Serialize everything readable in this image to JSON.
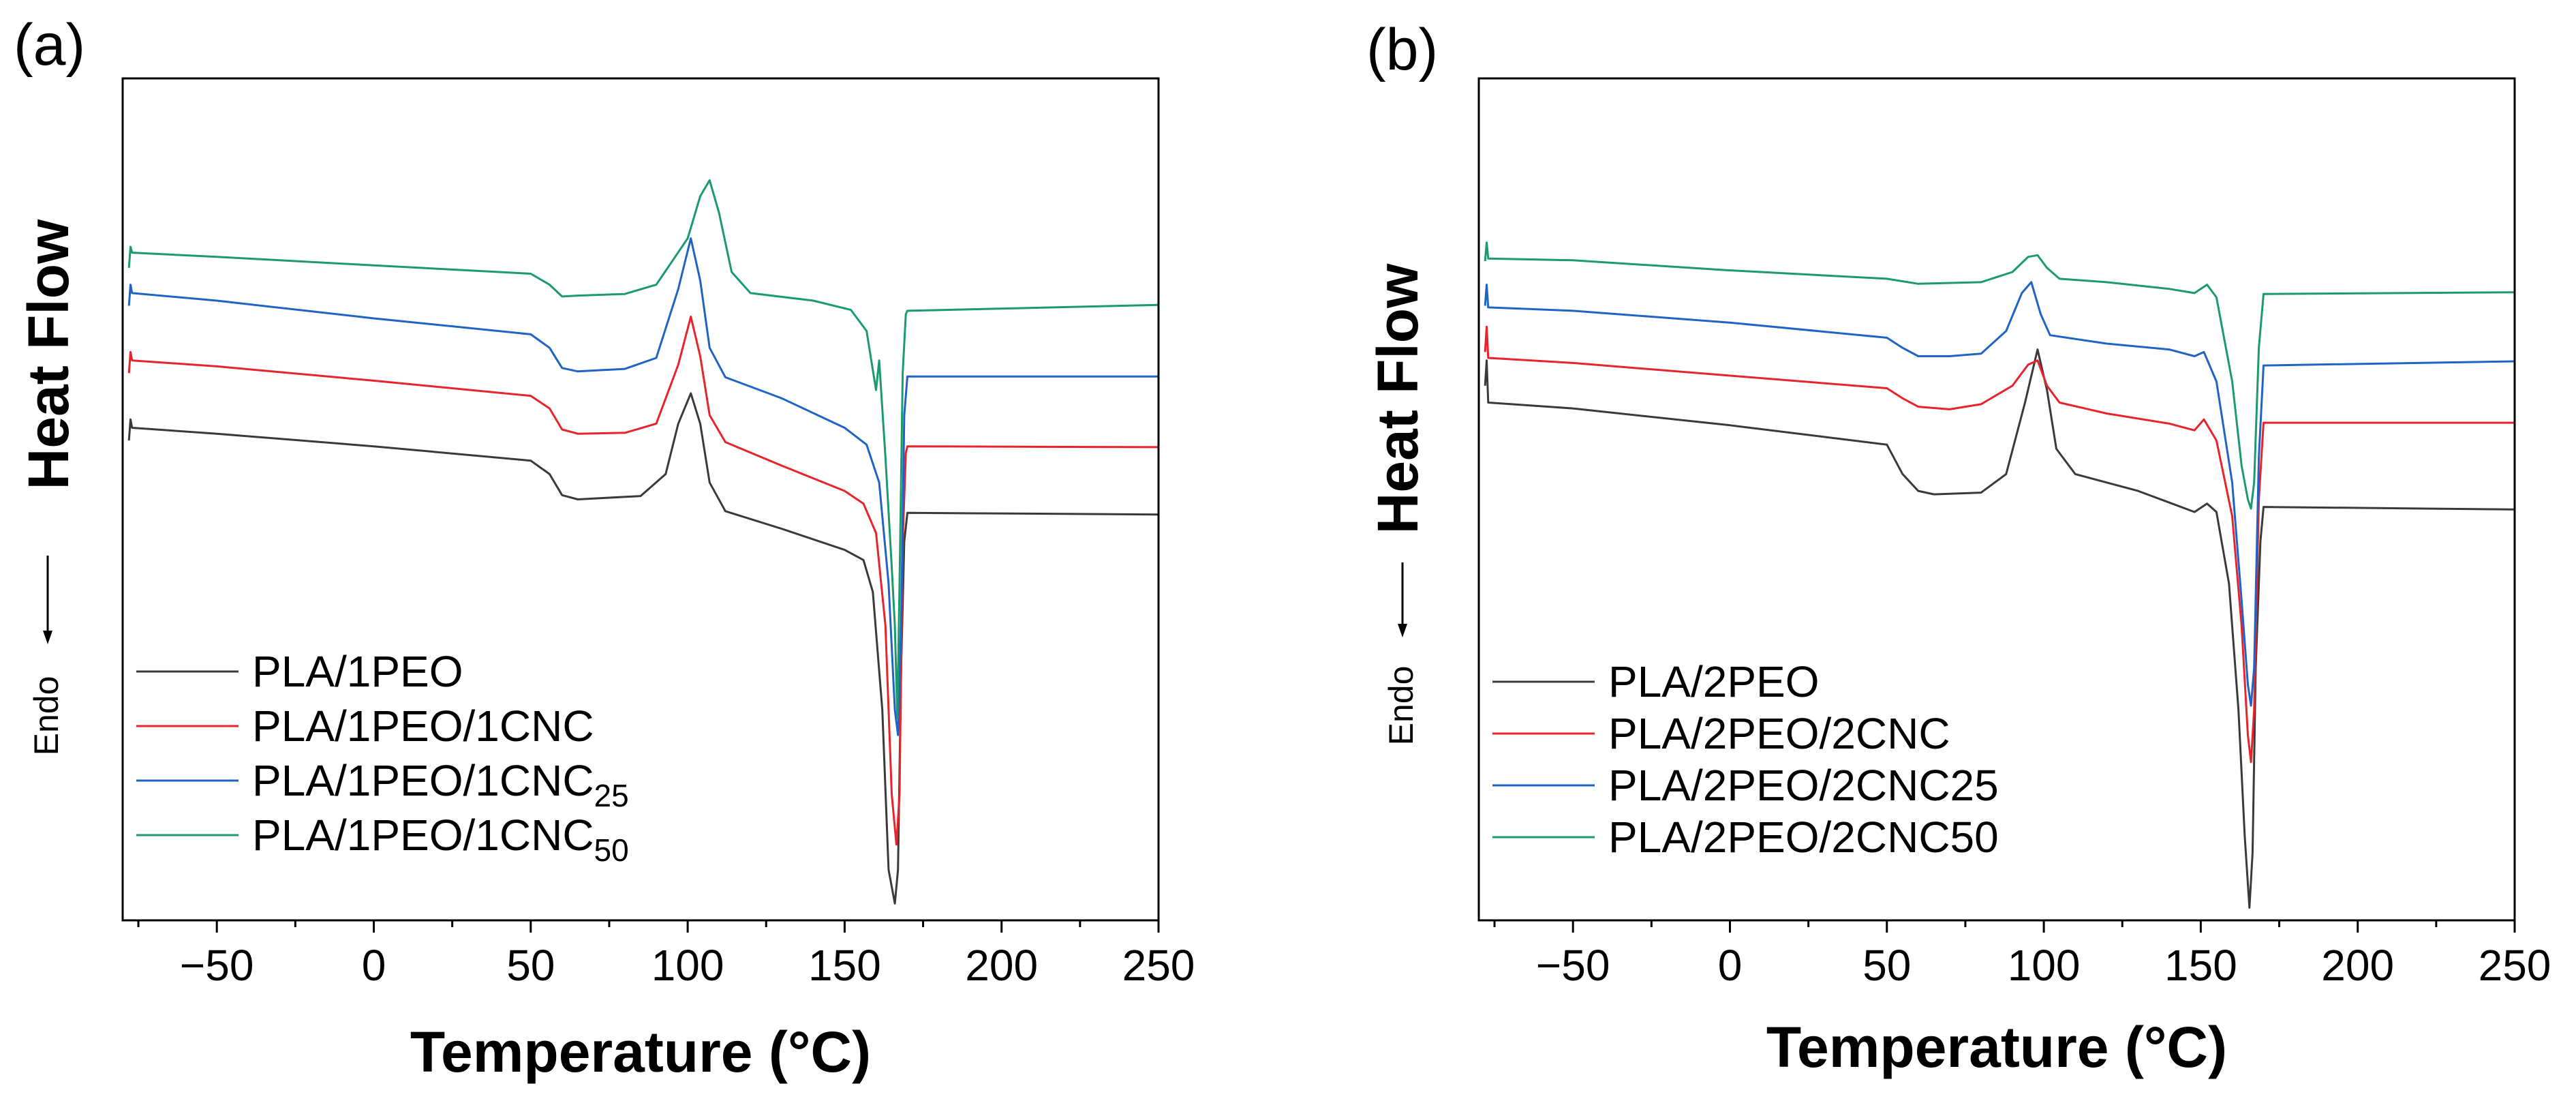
{
  "chart_data": [
    {
      "type": "line",
      "panel": "(a)",
      "xlabel": "Temperature (°C)",
      "ylabel": "Heat Flow",
      "ylabel_note": "Endo",
      "xlim": [
        -80,
        250
      ],
      "xticks": [
        -50,
        0,
        50,
        100,
        150,
        200,
        250
      ],
      "xtick_labels": [
        "−50",
        "0",
        "50",
        "100",
        "150",
        "200",
        "250"
      ],
      "ylim": [
        0,
        100
      ],
      "series": [
        {
          "name": "PLA/1PEO",
          "base": "PLA/1PEO",
          "sub": "",
          "color": "#3a3a3a",
          "points": [
            [
              -78,
              57.0
            ],
            [
              -77.5,
              59.5
            ],
            [
              -77,
              58.5
            ],
            [
              -50,
              57.8
            ],
            [
              0,
              56.3
            ],
            [
              50,
              54.6
            ],
            [
              56,
              53.0
            ],
            [
              60,
              50.5
            ],
            [
              65,
              50.0
            ],
            [
              85,
              50.4
            ],
            [
              93,
              53.0
            ],
            [
              97,
              59.0
            ],
            [
              101,
              62.6
            ],
            [
              104,
              59.0
            ],
            [
              107,
              52.0
            ],
            [
              112,
              48.6
            ],
            [
              130,
              46.5
            ],
            [
              150,
              44.0
            ],
            [
              156,
              42.8
            ],
            [
              159,
              39.0
            ],
            [
              162,
              25.0
            ],
            [
              164,
              6.0
            ],
            [
              166,
              2.0
            ],
            [
              167,
              6.0
            ],
            [
              168,
              30.0
            ],
            [
              169,
              45.0
            ],
            [
              170,
              48.4
            ],
            [
              250,
              48.2
            ]
          ]
        },
        {
          "name": "PLA/1PEO/1CNC",
          "base": "PLA/1PEO/1CNC",
          "sub": "",
          "color": "#e8232b",
          "points": [
            [
              -78,
              65.0
            ],
            [
              -77.5,
              67.5
            ],
            [
              -77,
              66.5
            ],
            [
              -50,
              65.8
            ],
            [
              0,
              64.1
            ],
            [
              50,
              62.3
            ],
            [
              56,
              60.8
            ],
            [
              60,
              58.3
            ],
            [
              65,
              57.8
            ],
            [
              80,
              57.9
            ],
            [
              90,
              59.0
            ],
            [
              97,
              66.0
            ],
            [
              101,
              71.7
            ],
            [
              104,
              67.0
            ],
            [
              107,
              60.0
            ],
            [
              112,
              56.8
            ],
            [
              130,
              54.0
            ],
            [
              150,
              51.0
            ],
            [
              156,
              49.5
            ],
            [
              160,
              46.0
            ],
            [
              163,
              35.0
            ],
            [
              165,
              15.0
            ],
            [
              166.5,
              9.0
            ],
            [
              167.5,
              15.0
            ],
            [
              168.5,
              45.0
            ],
            [
              169.5,
              55.5
            ],
            [
              170,
              56.3
            ],
            [
              250,
              56.2
            ]
          ]
        },
        {
          "name": "PLA/1PEO/1CNC25",
          "base": "PLA/1PEO/1CNC",
          "sub": "25",
          "color": "#1f63c6",
          "points": [
            [
              -78,
              73.0
            ],
            [
              -77.5,
              75.5
            ],
            [
              -77,
              74.5
            ],
            [
              -50,
              73.6
            ],
            [
              0,
              71.5
            ],
            [
              50,
              69.6
            ],
            [
              56,
              68.0
            ],
            [
              60,
              65.6
            ],
            [
              65,
              65.2
            ],
            [
              80,
              65.5
            ],
            [
              90,
              66.8
            ],
            [
              97,
              75.0
            ],
            [
              101,
              81.0
            ],
            [
              104,
              76.0
            ],
            [
              107,
              68.0
            ],
            [
              112,
              64.5
            ],
            [
              130,
              62.0
            ],
            [
              150,
              58.5
            ],
            [
              157,
              56.5
            ],
            [
              161,
              52.0
            ],
            [
              164,
              40.0
            ],
            [
              166,
              25.0
            ],
            [
              167,
              22.0
            ],
            [
              168,
              35.0
            ],
            [
              169,
              60.0
            ],
            [
              170,
              64.6
            ],
            [
              250,
              64.6
            ]
          ]
        },
        {
          "name": "PLA/1PEO/1CNC50",
          "base": "PLA/1PEO/1CNC",
          "sub": "50",
          "color": "#1b9b6c",
          "points": [
            [
              -78,
              77.5
            ],
            [
              -77.5,
              80.0
            ],
            [
              -77,
              79.3
            ],
            [
              -50,
              78.8
            ],
            [
              0,
              77.8
            ],
            [
              50,
              76.8
            ],
            [
              56,
              75.5
            ],
            [
              60,
              74.1
            ],
            [
              65,
              74.2
            ],
            [
              80,
              74.4
            ],
            [
              90,
              75.5
            ],
            [
              100,
              81.0
            ],
            [
              104,
              86.0
            ],
            [
              107,
              87.9
            ],
            [
              110,
              84.0
            ],
            [
              114,
              77.0
            ],
            [
              120,
              74.5
            ],
            [
              140,
              73.6
            ],
            [
              152,
              72.5
            ],
            [
              157,
              70.0
            ],
            [
              160,
              63.0
            ],
            [
              161,
              66.5
            ],
            [
              163,
              55.0
            ],
            [
              165,
              42.0
            ],
            [
              166,
              35.0
            ],
            [
              166.8,
              24.0
            ],
            [
              167.5,
              40.0
            ],
            [
              168.5,
              65.0
            ],
            [
              169.5,
              72.0
            ],
            [
              170,
              72.4
            ],
            [
              250,
              73.1
            ]
          ]
        }
      ],
      "legend": "lower-left"
    },
    {
      "type": "line",
      "panel": "(b)",
      "xlabel": "Temperature (°C)",
      "ylabel": "Heat Flow",
      "ylabel_note": "Endo",
      "xlim": [
        -80,
        250
      ],
      "xticks": [
        -50,
        0,
        50,
        100,
        150,
        200,
        250
      ],
      "xtick_labels": [
        "−50",
        "0",
        "50",
        "100",
        "150",
        "200",
        "250"
      ],
      "ylim": [
        0,
        100
      ],
      "series": [
        {
          "name": "PLA/2PEO",
          "base": "PLA/2PEO",
          "sub": "",
          "color": "#3a3a3a",
          "points": [
            [
              -78,
              63.5
            ],
            [
              -77.5,
              66.5
            ],
            [
              -77,
              61.5
            ],
            [
              -50,
              60.8
            ],
            [
              0,
              58.8
            ],
            [
              50,
              56.5
            ],
            [
              55,
              53.0
            ],
            [
              60,
              51.0
            ],
            [
              65,
              50.6
            ],
            [
              80,
              50.8
            ],
            [
              88,
              53.0
            ],
            [
              94,
              61.5
            ],
            [
              98,
              67.8
            ],
            [
              101,
              63.0
            ],
            [
              104,
              56.0
            ],
            [
              110,
              53.0
            ],
            [
              130,
              51.0
            ],
            [
              148,
              48.5
            ],
            [
              152,
              49.5
            ],
            [
              155,
              48.5
            ],
            [
              159,
              40.0
            ],
            [
              162,
              25.0
            ],
            [
              164,
              10.0
            ],
            [
              165.5,
              1.5
            ],
            [
              166.5,
              8.0
            ],
            [
              167.5,
              30.0
            ],
            [
              169,
              45.0
            ],
            [
              170,
              49.1
            ],
            [
              250,
              48.8
            ]
          ]
        },
        {
          "name": "PLA/2PEO/2CNC",
          "base": "PLA/2PEO/2CNC",
          "sub": "",
          "color": "#e8232b",
          "points": [
            [
              -78,
              67.5
            ],
            [
              -77.5,
              70.5
            ],
            [
              -77,
              66.8
            ],
            [
              -50,
              66.2
            ],
            [
              0,
              64.7
            ],
            [
              50,
              63.2
            ],
            [
              55,
              62.0
            ],
            [
              60,
              61.0
            ],
            [
              70,
              60.7
            ],
            [
              80,
              61.3
            ],
            [
              90,
              63.5
            ],
            [
              95,
              66.0
            ],
            [
              98,
              66.5
            ],
            [
              101,
              63.5
            ],
            [
              105,
              61.5
            ],
            [
              120,
              60.2
            ],
            [
              140,
              59.0
            ],
            [
              148,
              58.2
            ],
            [
              151,
              59.5
            ],
            [
              155,
              57.0
            ],
            [
              160,
              48.0
            ],
            [
              163,
              35.0
            ],
            [
              165,
              22.0
            ],
            [
              166,
              18.8
            ],
            [
              167,
              25.0
            ],
            [
              168.5,
              50.0
            ],
            [
              170,
              59.1
            ],
            [
              250,
              59.1
            ]
          ]
        },
        {
          "name": "PLA/2PEO/2CNC25",
          "base": "PLA/2PEO/2CNC25",
          "sub": "",
          "color": "#1f63c6",
          "points": [
            [
              -78,
              73.0
            ],
            [
              -77.5,
              75.5
            ],
            [
              -77,
              72.8
            ],
            [
              -50,
              72.4
            ],
            [
              0,
              71.0
            ],
            [
              50,
              69.2
            ],
            [
              55,
              68.0
            ],
            [
              60,
              67.0
            ],
            [
              70,
              67.0
            ],
            [
              80,
              67.3
            ],
            [
              88,
              70.0
            ],
            [
              93,
              74.5
            ],
            [
              96,
              75.8
            ],
            [
              99,
              72.0
            ],
            [
              102,
              69.5
            ],
            [
              120,
              68.5
            ],
            [
              140,
              67.8
            ],
            [
              148,
              67.0
            ],
            [
              151,
              67.5
            ],
            [
              155,
              64.0
            ],
            [
              160,
              52.0
            ],
            [
              163,
              38.0
            ],
            [
              165,
              28.0
            ],
            [
              166,
              25.5
            ],
            [
              167,
              30.0
            ],
            [
              168.5,
              55.0
            ],
            [
              170,
              65.9
            ],
            [
              250,
              66.4
            ]
          ]
        },
        {
          "name": "PLA/2PEO/2CNC50",
          "base": "PLA/2PEO/2CNC50",
          "sub": "",
          "color": "#1b9b6c",
          "points": [
            [
              -78,
              78.3
            ],
            [
              -77.5,
              80.5
            ],
            [
              -77,
              78.6
            ],
            [
              -50,
              78.4
            ],
            [
              0,
              77.2
            ],
            [
              50,
              76.2
            ],
            [
              60,
              75.6
            ],
            [
              80,
              75.8
            ],
            [
              90,
              77.0
            ],
            [
              95,
              78.8
            ],
            [
              98,
              79.0
            ],
            [
              101,
              77.5
            ],
            [
              105,
              76.2
            ],
            [
              120,
              75.8
            ],
            [
              140,
              75.0
            ],
            [
              148,
              74.5
            ],
            [
              152,
              75.5
            ],
            [
              155,
              74.0
            ],
            [
              160,
              64.0
            ],
            [
              163,
              54.0
            ],
            [
              165,
              50.0
            ],
            [
              166,
              48.9
            ],
            [
              167,
              52.0
            ],
            [
              168.5,
              68.0
            ],
            [
              170,
              74.4
            ],
            [
              250,
              74.6
            ]
          ]
        }
      ],
      "legend": "lower-left"
    }
  ]
}
